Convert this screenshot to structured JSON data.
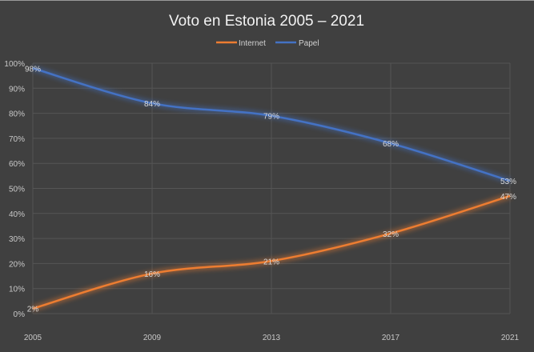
{
  "chart_data": {
    "type": "line",
    "title": "Voto en Estonia 2005 – 2021",
    "xlabel": "",
    "ylabel": "",
    "categories": [
      "2005",
      "2009",
      "2013",
      "2017",
      "2021"
    ],
    "ylim": [
      0,
      100
    ],
    "yticks": [
      "0%",
      "10%",
      "20%",
      "30%",
      "40%",
      "50%",
      "60%",
      "70%",
      "80%",
      "90%",
      "100%"
    ],
    "grid": true,
    "legend_position": "top",
    "series": [
      {
        "name": "Internet",
        "color": "#ed7d31",
        "values": [
          2,
          16,
          21,
          32,
          47
        ],
        "labels": [
          "2%",
          "16%",
          "21%",
          "32%",
          "47%"
        ]
      },
      {
        "name": "Papel",
        "color": "#4472c4",
        "values": [
          98,
          84,
          79,
          68,
          53
        ],
        "labels": [
          "98%",
          "84%",
          "79%",
          "68%",
          "53%"
        ]
      }
    ]
  }
}
